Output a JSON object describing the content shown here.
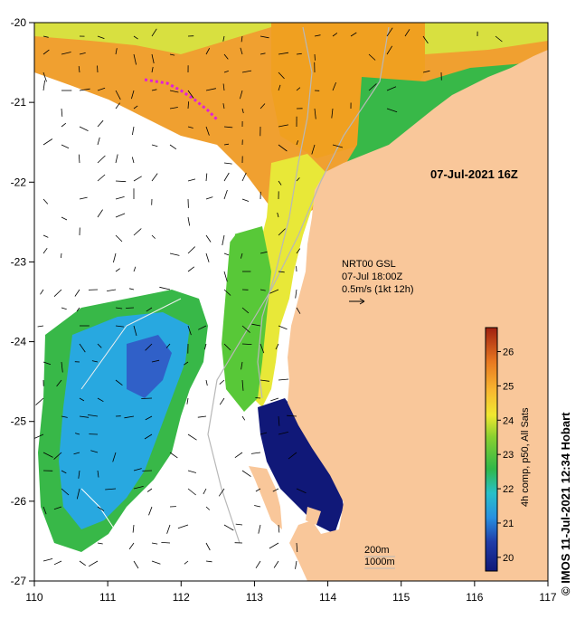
{
  "map": {
    "date_label": "07-Jul-2021 16Z",
    "vector_legend": {
      "line1": "NRT00 GSL",
      "line2": "07-Jul 18:00Z",
      "line3": "0.5m/s (1kt 12h)"
    },
    "depth_contours": {
      "line1": "200m",
      "line2": "1000m"
    },
    "x_ticks": [
      "110",
      "111",
      "112",
      "113",
      "114",
      "115",
      "116",
      "117"
    ],
    "y_ticks": [
      "-20",
      "-21",
      "-22",
      "-23",
      "-24",
      "-25",
      "-26",
      "-27"
    ],
    "credit": "© IMOS 11-Jul-2021 12:34 Hobart",
    "colorbar": {
      "label": "4h comp, p50, All Sats",
      "ticks": [
        "20",
        "21",
        "22",
        "23",
        "24",
        "25",
        "26"
      ]
    },
    "colors": {
      "land": "#f9c79a",
      "cloud": "#ffffff",
      "warm": "#f0a030",
      "mid": "#f2e030",
      "green": "#38b838",
      "cyan": "#28a8e0",
      "blue": "#203898",
      "navy": "#101878",
      "magenta": "#e020d8"
    }
  }
}
